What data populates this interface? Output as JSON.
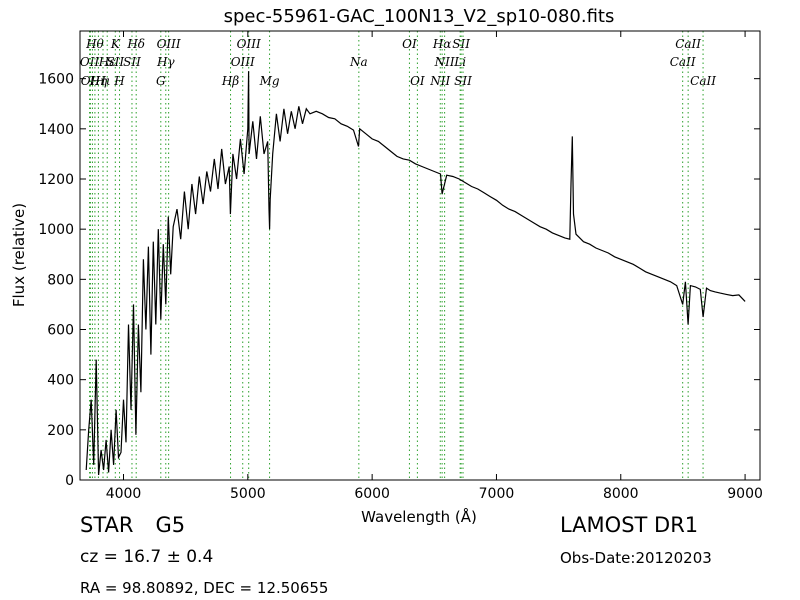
{
  "chart_data": {
    "type": "line",
    "title": "spec-55961-GAC_100N13_V2_sp10-080.fits",
    "xlabel": "Wavelength (Å)",
    "ylabel": "Flux (relative)",
    "xlim": [
      3650,
      9120
    ],
    "ylim": [
      0,
      1790
    ],
    "xticks": [
      4000,
      5000,
      6000,
      7000,
      8000,
      9000
    ],
    "yticks": [
      0,
      200,
      400,
      600,
      800,
      1000,
      1200,
      1400,
      1600
    ],
    "grid": false,
    "series": [
      {
        "color": "#000000",
        "x": [
          3700,
          3720,
          3740,
          3760,
          3780,
          3800,
          3820,
          3840,
          3860,
          3880,
          3900,
          3920,
          3940,
          3960,
          3980,
          4000,
          4020,
          4040,
          4060,
          4080,
          4100,
          4120,
          4140,
          4160,
          4180,
          4200,
          4220,
          4240,
          4260,
          4280,
          4300,
          4320,
          4340,
          4360,
          4380,
          4400,
          4430,
          4460,
          4490,
          4520,
          4550,
          4580,
          4610,
          4640,
          4670,
          4700,
          4730,
          4760,
          4790,
          4820,
          4850,
          4860,
          4880,
          4910,
          4940,
          4970,
          5000,
          5006,
          5010,
          5040,
          5070,
          5100,
          5130,
          5160,
          5170,
          5175,
          5180,
          5200,
          5230,
          5260,
          5290,
          5320,
          5350,
          5380,
          5410,
          5440,
          5470,
          5500,
          5550,
          5600,
          5650,
          5700,
          5750,
          5800,
          5850,
          5890,
          5900,
          5950,
          6000,
          6050,
          6100,
          6150,
          6200,
          6250,
          6300,
          6350,
          6400,
          6450,
          6500,
          6550,
          6563,
          6600,
          6650,
          6700,
          6750,
          6800,
          6850,
          6900,
          6950,
          7000,
          7050,
          7100,
          7150,
          7200,
          7250,
          7300,
          7350,
          7400,
          7450,
          7500,
          7550,
          7590,
          7600,
          7610,
          7620,
          7640,
          7680,
          7700,
          7750,
          7800,
          7850,
          7900,
          7950,
          8000,
          8050,
          8100,
          8150,
          8200,
          8250,
          8300,
          8350,
          8400,
          8450,
          8498,
          8520,
          8542,
          8560,
          8600,
          8640,
          8662,
          8690,
          8720,
          8760,
          8800,
          8850,
          8900,
          8950,
          9000
        ],
        "y": [
          40,
          200,
          320,
          60,
          480,
          20,
          120,
          40,
          160,
          30,
          200,
          60,
          280,
          90,
          110,
          320,
          150,
          620,
          280,
          700,
          180,
          620,
          350,
          880,
          600,
          930,
          500,
          950,
          620,
          1000,
          640,
          940,
          700,
          1050,
          820,
          1010,
          1080,
          960,
          1150,
          1000,
          1180,
          1060,
          1210,
          1100,
          1230,
          1150,
          1280,
          1160,
          1320,
          1180,
          1250,
          1060,
          1300,
          1200,
          1360,
          1220,
          1400,
          1630,
          1300,
          1430,
          1280,
          1450,
          1300,
          1350,
          1080,
          1000,
          1120,
          1300,
          1460,
          1350,
          1480,
          1380,
          1470,
          1400,
          1490,
          1420,
          1480,
          1460,
          1470,
          1460,
          1445,
          1440,
          1420,
          1410,
          1395,
          1330,
          1400,
          1380,
          1360,
          1350,
          1330,
          1310,
          1290,
          1280,
          1275,
          1260,
          1250,
          1240,
          1230,
          1220,
          1140,
          1215,
          1210,
          1200,
          1185,
          1170,
          1160,
          1145,
          1130,
          1115,
          1095,
          1080,
          1070,
          1055,
          1040,
          1025,
          1010,
          1000,
          985,
          975,
          965,
          960,
          1180,
          1370,
          1060,
          980,
          960,
          950,
          940,
          925,
          915,
          905,
          890,
          880,
          870,
          860,
          845,
          830,
          820,
          810,
          800,
          790,
          775,
          700,
          790,
          620,
          775,
          770,
          760,
          650,
          765,
          755,
          750,
          745,
          740,
          735,
          738,
          712
        ]
      }
    ],
    "line_groups": [
      {
        "x": 3727,
        "labels": [
          {
            "text": "OII",
            "row": 2
          }
        ]
      },
      {
        "x": 3734,
        "labels": [
          {
            "text": "OII",
            "row": 3
          }
        ]
      },
      {
        "x": 3750,
        "labels": []
      },
      {
        "x": 3770,
        "labels": [
          {
            "text": "Hθ",
            "row": 1
          }
        ]
      },
      {
        "x": 3798,
        "labels": [
          {
            "text": "Hη",
            "row": 3
          }
        ]
      },
      {
        "x": 3835,
        "labels": [
          {
            "text": "Hι",
            "row": 3
          }
        ]
      },
      {
        "x": 3869,
        "labels": [
          {
            "text": "Hε",
            "row": 2
          }
        ]
      },
      {
        "x": 3934,
        "labels": [
          {
            "text": "K",
            "row": 1
          },
          {
            "text": "SII",
            "row": 2
          }
        ]
      },
      {
        "x": 3968,
        "labels": [
          {
            "text": "H",
            "row": 3
          }
        ]
      },
      {
        "x": 4068,
        "labels": [
          {
            "text": "SII",
            "row": 2
          }
        ]
      },
      {
        "x": 4102,
        "labels": [
          {
            "text": "Hδ",
            "row": 1
          }
        ]
      },
      {
        "x": 4300,
        "labels": [
          {
            "text": "G",
            "row": 3
          }
        ]
      },
      {
        "x": 4340,
        "labels": [
          {
            "text": "Hγ",
            "row": 2
          }
        ]
      },
      {
        "x": 4363,
        "labels": [
          {
            "text": "OIII",
            "row": 1
          }
        ]
      },
      {
        "x": 4861,
        "labels": [
          {
            "text": "Hβ",
            "row": 3
          }
        ]
      },
      {
        "x": 4959,
        "labels": [
          {
            "text": "OIII",
            "row": 2
          }
        ]
      },
      {
        "x": 5007,
        "labels": [
          {
            "text": "OIII",
            "row": 1
          }
        ]
      },
      {
        "x": 5175,
        "labels": [
          {
            "text": "Mg",
            "row": 3
          }
        ]
      },
      {
        "x": 5893,
        "labels": [
          {
            "text": "Na",
            "row": 2
          }
        ]
      },
      {
        "x": 6300,
        "labels": [
          {
            "text": "OI",
            "row": 1
          }
        ]
      },
      {
        "x": 6364,
        "labels": [
          {
            "text": "OI",
            "row": 3
          }
        ]
      },
      {
        "x": 6548,
        "labels": [
          {
            "text": "NII",
            "row": 3
          }
        ]
      },
      {
        "x": 6563,
        "labels": [
          {
            "text": "Hα",
            "row": 1
          }
        ]
      },
      {
        "x": 6583,
        "labels": [
          {
            "text": "NII",
            "row": 2
          }
        ]
      },
      {
        "x": 6708,
        "labels": [
          {
            "text": "Li",
            "row": 2
          }
        ]
      },
      {
        "x": 6716,
        "labels": [
          {
            "text": "SII",
            "row": 1
          }
        ]
      },
      {
        "x": 6731,
        "labels": [
          {
            "text": "SII",
            "row": 3
          }
        ]
      },
      {
        "x": 8498,
        "labels": [
          {
            "text": "CaII",
            "row": 2
          }
        ]
      },
      {
        "x": 8542,
        "labels": [
          {
            "text": "CaII",
            "row": 1
          }
        ]
      },
      {
        "x": 8662,
        "labels": [
          {
            "text": "CaII",
            "row": 3
          }
        ]
      }
    ]
  },
  "info": {
    "object_type": "STAR",
    "subclass": "G5",
    "cz": "cz = 16.7 ± 0.4",
    "radec": "RA = 98.80892, DEC = 12.50655",
    "survey": "LAMOST DR1",
    "obs_date": "Obs-Date:20120203"
  },
  "colors": {
    "spectrum": "#000000",
    "line_markers": "#2ca02c",
    "axes": "#000000"
  }
}
